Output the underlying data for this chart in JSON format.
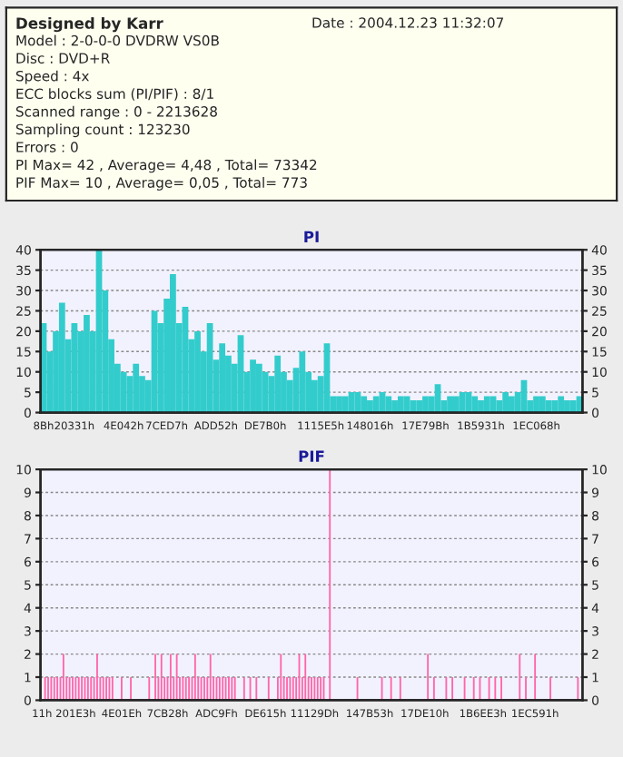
{
  "chart_data": [
    {
      "type": "other",
      "annotations": [
        "Designed by Karr",
        "Date : 2004.12.23 11:32:07",
        "Model : 2-0-0-0 DVDRW VS0B",
        "Disc : DVD+R",
        "Speed : 4x",
        "ECC blocks sum (PI/PIF) : 8/1",
        "Scanned range : 0 - 2213628",
        "Sampling count : 123230",
        "Errors : 0",
        "PI Max= 42 , Average= 4,48 , Total= 73342",
        "PIF Max= 10 , Average= 0,05 , Total= 773"
      ]
    },
    {
      "type": "bar",
      "title": "PI",
      "color": "#33cccc",
      "grid": "y",
      "legend": false,
      "categories": [
        "8Bh",
        null,
        null,
        null,
        null,
        "20331h",
        null,
        null,
        null,
        null,
        null,
        null,
        null,
        "4E042h",
        null,
        null,
        null,
        null,
        null,
        null,
        "7CED7h",
        null,
        null,
        null,
        null,
        null,
        null,
        null,
        "ADD52h",
        null,
        null,
        null,
        null,
        null,
        null,
        null,
        "DE7B0h",
        null,
        null,
        null,
        null,
        null,
        null,
        null,
        null,
        "1115E5h",
        null,
        null,
        null,
        null,
        null,
        null,
        null,
        "148016h",
        null,
        null,
        null,
        null,
        null,
        null,
        null,
        null,
        "17E79Bh",
        null,
        null,
        null,
        null,
        null,
        null,
        null,
        null,
        "1B5931h",
        null,
        null,
        null,
        null,
        null,
        null,
        null,
        null,
        "1EC068h",
        null,
        null,
        null,
        null,
        null,
        null,
        null
      ],
      "values": [
        22,
        15,
        20,
        27,
        18,
        22,
        20,
        24,
        20,
        40,
        30,
        18,
        12,
        10,
        9,
        12,
        9,
        8,
        25,
        22,
        28,
        34,
        22,
        26,
        18,
        20,
        15,
        22,
        13,
        17,
        14,
        12,
        19,
        10,
        13,
        12,
        10,
        9,
        14,
        10,
        8,
        11,
        15,
        10,
        8,
        9,
        17,
        4,
        4,
        4,
        5,
        5,
        4,
        3,
        4,
        5,
        4,
        3,
        4,
        4,
        3,
        3,
        4,
        4,
        7,
        3,
        4,
        4,
        5,
        5,
        4,
        3,
        4,
        4,
        3,
        5,
        4,
        5,
        8,
        3,
        4,
        4,
        3,
        3,
        4,
        3,
        3,
        4
      ],
      "ylim": [
        0,
        40
      ],
      "yticks": [
        0,
        5,
        10,
        15,
        20,
        25,
        30,
        35,
        40
      ],
      "y2lim": [
        0,
        40
      ],
      "y2ticks": [
        0,
        5,
        10,
        15,
        20,
        25,
        30,
        35,
        40
      ]
    },
    {
      "type": "bar",
      "title": "PIF",
      "color": "#ff66aa",
      "grid": "y",
      "legend": false,
      "categories": [
        "11h",
        null,
        null,
        null,
        null,
        null,
        null,
        null,
        null,
        null,
        null,
        "201E3h",
        null,
        null,
        null,
        null,
        null,
        null,
        null,
        null,
        null,
        null,
        null,
        null,
        null,
        null,
        "4E01Eh",
        null,
        null,
        null,
        null,
        null,
        null,
        null,
        null,
        null,
        null,
        null,
        null,
        null,
        null,
        "7CB28h",
        null,
        null,
        null,
        null,
        null,
        null,
        null,
        null,
        null,
        null,
        null,
        null,
        null,
        null,
        null,
        "ADC9Fh",
        null,
        null,
        null,
        null,
        null,
        null,
        null,
        null,
        null,
        null,
        null,
        null,
        null,
        null,
        null,
        "DE615h",
        null,
        null,
        null,
        null,
        null,
        null,
        null,
        null,
        null,
        null,
        null,
        null,
        null,
        null,
        null,
        "11129Dh",
        null,
        null,
        null,
        null,
        null,
        null,
        null,
        null,
        null,
        null,
        null,
        null,
        null,
        null,
        null,
        null,
        null,
        "147B53h",
        null,
        null,
        null,
        null,
        null,
        null,
        null,
        null,
        null,
        null,
        null,
        null,
        null,
        null,
        null,
        null,
        null,
        "17DE10h",
        null,
        null,
        null,
        null,
        null,
        null,
        null,
        null,
        null,
        null,
        null,
        null,
        null,
        null,
        null,
        null,
        null,
        null,
        "1B6EE3h",
        null,
        null,
        null,
        null,
        null,
        null,
        null,
        null,
        null,
        null,
        null,
        null,
        null,
        null,
        null,
        null,
        "1EC591h",
        null,
        null,
        null,
        null,
        null,
        null,
        null,
        null,
        null,
        null,
        null,
        null,
        null,
        null,
        null
      ],
      "values": [
        0,
        1,
        1,
        1,
        1,
        1,
        1,
        2,
        1,
        1,
        1,
        1,
        1,
        1,
        1,
        1,
        1,
        1,
        2,
        1,
        1,
        1,
        1,
        1,
        0,
        0,
        1,
        0,
        0,
        1,
        0,
        0,
        0,
        0,
        0,
        1,
        0,
        2,
        1,
        2,
        1,
        1,
        2,
        1,
        2,
        1,
        1,
        1,
        1,
        1,
        2,
        1,
        1,
        1,
        1,
        2,
        1,
        1,
        1,
        1,
        1,
        1,
        1,
        1,
        0,
        0,
        1,
        0,
        1,
        0,
        1,
        0,
        0,
        0,
        1,
        0,
        0,
        1,
        2,
        1,
        1,
        1,
        1,
        1,
        2,
        1,
        2,
        1,
        1,
        1,
        1,
        1,
        1,
        0,
        10,
        0,
        0,
        0,
        0,
        0,
        0,
        0,
        0,
        1,
        0,
        0,
        0,
        0,
        0,
        0,
        0,
        1,
        0,
        0,
        1,
        0,
        0,
        1,
        0,
        0,
        0,
        0,
        0,
        0,
        0,
        0,
        2,
        0,
        1,
        0,
        0,
        0,
        1,
        0,
        1,
        0,
        0,
        0,
        1,
        0,
        0,
        1,
        0,
        1,
        0,
        0,
        1,
        0,
        1,
        0,
        1,
        0,
        0,
        0,
        0,
        0,
        2,
        0,
        1,
        0,
        0,
        2,
        0,
        0,
        0,
        0,
        1,
        0,
        0,
        0,
        0,
        0,
        0,
        0,
        0,
        1,
        0
      ],
      "ylim": [
        0,
        10
      ],
      "yticks": [
        0,
        1,
        2,
        3,
        4,
        5,
        6,
        7,
        8,
        9,
        10
      ],
      "y2lim": [
        0,
        10
      ],
      "y2ticks": [
        0,
        1,
        2,
        3,
        4,
        5,
        6,
        7,
        8,
        9,
        10
      ]
    }
  ]
}
